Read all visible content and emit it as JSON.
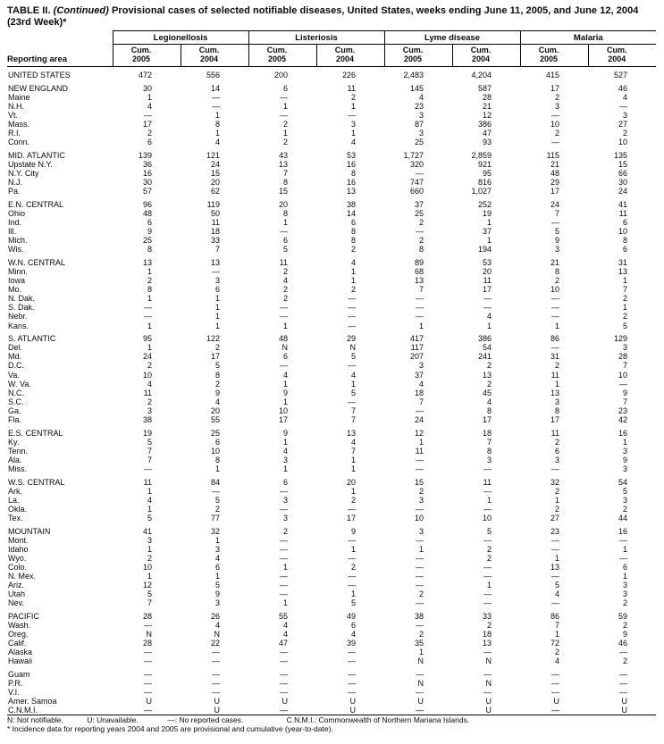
{
  "title": {
    "part_bold": "TABLE II.",
    "part_italic": "(Continued)",
    "part_rest": "Provisional cases of selected notifiable diseases, United States, weeks ending June 11, 2005, and June 12, 2004",
    "line2": "(23rd Week)*"
  },
  "header": {
    "reporting_area": "Reporting area",
    "disease_groups": [
      "Legionellosis",
      "Listeriosis",
      "Lyme disease",
      "Malaria"
    ],
    "subcols": [
      {
        "line1": "Cum.",
        "line2": "2005"
      },
      {
        "line1": "Cum.",
        "line2": "2004"
      },
      {
        "line1": "Cum.",
        "line2": "2005"
      },
      {
        "line1": "Cum.",
        "line2": "2004"
      },
      {
        "line1": "Cum.",
        "line2": "2005"
      },
      {
        "line1": "Cum.",
        "line2": "2004"
      },
      {
        "line1": "Cum.",
        "line2": "2005"
      },
      {
        "line1": "Cum.",
        "line2": "2004"
      }
    ]
  },
  "body": {
    "groups": [
      {
        "rows": [
          {
            "area": "UNITED STATES",
            "values": [
              "472",
              "556",
              "200",
              "226",
              "2,483",
              "4,204",
              "415",
              "527"
            ]
          }
        ]
      },
      {
        "rows": [
          {
            "area": "NEW ENGLAND",
            "values": [
              "30",
              "14",
              "6",
              "11",
              "145",
              "587",
              "17",
              "46"
            ]
          },
          {
            "area": "Maine",
            "values": [
              "1",
              "—",
              "—",
              "2",
              "4",
              "28",
              "2",
              "4"
            ]
          },
          {
            "area": "N.H.",
            "values": [
              "4",
              "—",
              "1",
              "1",
              "23",
              "21",
              "3",
              "—"
            ]
          },
          {
            "area": "Vt.",
            "values": [
              "—",
              "1",
              "—",
              "—",
              "3",
              "12",
              "—",
              "3"
            ]
          },
          {
            "area": "Mass.",
            "values": [
              "17",
              "8",
              "2",
              "3",
              "87",
              "386",
              "10",
              "27"
            ]
          },
          {
            "area": "R.I.",
            "values": [
              "2",
              "1",
              "1",
              "1",
              "3",
              "47",
              "2",
              "2"
            ]
          },
          {
            "area": "Conn.",
            "values": [
              "6",
              "4",
              "2",
              "4",
              "25",
              "93",
              "—",
              "10"
            ]
          }
        ]
      },
      {
        "rows": [
          {
            "area": "MID. ATLANTIC",
            "values": [
              "139",
              "121",
              "43",
              "53",
              "1,727",
              "2,859",
              "115",
              "135"
            ]
          },
          {
            "area": "Upstate N.Y.",
            "values": [
              "36",
              "24",
              "13",
              "16",
              "320",
              "921",
              "21",
              "15"
            ]
          },
          {
            "area": "N.Y. City",
            "values": [
              "16",
              "15",
              "7",
              "8",
              "—",
              "95",
              "48",
              "66"
            ]
          },
          {
            "area": "N.J.",
            "values": [
              "30",
              "20",
              "8",
              "16",
              "747",
              "816",
              "29",
              "30"
            ]
          },
          {
            "area": "Pa.",
            "values": [
              "57",
              "62",
              "15",
              "13",
              "660",
              "1,027",
              "17",
              "24"
            ]
          }
        ]
      },
      {
        "rows": [
          {
            "area": "E.N. CENTRAL",
            "values": [
              "96",
              "119",
              "20",
              "38",
              "37",
              "252",
              "24",
              "41"
            ]
          },
          {
            "area": "Ohio",
            "values": [
              "48",
              "50",
              "8",
              "14",
              "25",
              "19",
              "7",
              "11"
            ]
          },
          {
            "area": "Ind.",
            "values": [
              "6",
              "11",
              "1",
              "6",
              "2",
              "1",
              "—",
              "6"
            ]
          },
          {
            "area": "Ill.",
            "values": [
              "9",
              "18",
              "—",
              "8",
              "—",
              "37",
              "5",
              "10"
            ]
          },
          {
            "area": "Mich.",
            "values": [
              "25",
              "33",
              "6",
              "8",
              "2",
              "1",
              "9",
              "8"
            ]
          },
          {
            "area": "Wis.",
            "values": [
              "8",
              "7",
              "5",
              "2",
              "8",
              "194",
              "3",
              "6"
            ]
          }
        ]
      },
      {
        "rows": [
          {
            "area": "W.N. CENTRAL",
            "values": [
              "13",
              "13",
              "11",
              "4",
              "89",
              "53",
              "21",
              "31"
            ]
          },
          {
            "area": "Minn.",
            "values": [
              "1",
              "—",
              "2",
              "1",
              "68",
              "20",
              "8",
              "13"
            ]
          },
          {
            "area": "Iowa",
            "values": [
              "2",
              "3",
              "4",
              "1",
              "13",
              "11",
              "2",
              "1"
            ]
          },
          {
            "area": "Mo.",
            "values": [
              "8",
              "6",
              "2",
              "2",
              "7",
              "17",
              "10",
              "7"
            ]
          },
          {
            "area": "N. Dak.",
            "values": [
              "1",
              "1",
              "2",
              "—",
              "—",
              "—",
              "—",
              "2"
            ]
          },
          {
            "area": "S. Dak.",
            "values": [
              "—",
              "1",
              "—",
              "—",
              "—",
              "—",
              "—",
              "1"
            ]
          },
          {
            "area": "Nebr.",
            "values": [
              "—",
              "1",
              "—",
              "—",
              "—",
              "4",
              "—",
              "2"
            ]
          },
          {
            "area": "Kans.",
            "values": [
              "1",
              "1",
              "1",
              "—",
              "1",
              "1",
              "1",
              "5"
            ]
          }
        ]
      },
      {
        "rows": [
          {
            "area": "S. ATLANTIC",
            "values": [
              "95",
              "122",
              "48",
              "29",
              "417",
              "386",
              "86",
              "129"
            ]
          },
          {
            "area": "Del.",
            "values": [
              "1",
              "2",
              "N",
              "N",
              "117",
              "54",
              "—",
              "3"
            ]
          },
          {
            "area": "Md.",
            "values": [
              "24",
              "17",
              "6",
              "5",
              "207",
              "241",
              "31",
              "28"
            ]
          },
          {
            "area": "D.C.",
            "values": [
              "2",
              "5",
              "—",
              "—",
              "3",
              "2",
              "2",
              "7"
            ]
          },
          {
            "area": "Va.",
            "values": [
              "10",
              "8",
              "4",
              "4",
              "37",
              "13",
              "11",
              "10"
            ]
          },
          {
            "area": "W. Va.",
            "values": [
              "4",
              "2",
              "1",
              "1",
              "4",
              "2",
              "1",
              "—"
            ]
          },
          {
            "area": "N.C.",
            "values": [
              "11",
              "9",
              "9",
              "5",
              "18",
              "45",
              "13",
              "9"
            ]
          },
          {
            "area": "S.C.",
            "values": [
              "2",
              "4",
              "1",
              "—",
              "7",
              "4",
              "3",
              "7"
            ]
          },
          {
            "area": "Ga.",
            "values": [
              "3",
              "20",
              "10",
              "7",
              "—",
              "8",
              "8",
              "23"
            ]
          },
          {
            "area": "Fla.",
            "values": [
              "38",
              "55",
              "17",
              "7",
              "24",
              "17",
              "17",
              "42"
            ]
          }
        ]
      },
      {
        "rows": [
          {
            "area": "E.S. CENTRAL",
            "values": [
              "19",
              "25",
              "9",
              "13",
              "12",
              "18",
              "11",
              "16"
            ]
          },
          {
            "area": "Ky.",
            "values": [
              "5",
              "6",
              "1",
              "4",
              "1",
              "7",
              "2",
              "1"
            ]
          },
          {
            "area": "Tenn.",
            "values": [
              "7",
              "10",
              "4",
              "7",
              "11",
              "8",
              "6",
              "3"
            ]
          },
          {
            "area": "Ala.",
            "values": [
              "7",
              "8",
              "3",
              "1",
              "—",
              "3",
              "3",
              "9"
            ]
          },
          {
            "area": "Miss.",
            "values": [
              "—",
              "1",
              "1",
              "1",
              "—",
              "—",
              "—",
              "3"
            ]
          }
        ]
      },
      {
        "rows": [
          {
            "area": "W.S. CENTRAL",
            "values": [
              "11",
              "84",
              "6",
              "20",
              "15",
              "11",
              "32",
              "54"
            ]
          },
          {
            "area": "Ark.",
            "values": [
              "1",
              "—",
              "—",
              "1",
              "2",
              "—",
              "2",
              "5"
            ]
          },
          {
            "area": "La.",
            "values": [
              "4",
              "5",
              "3",
              "2",
              "3",
              "1",
              "1",
              "3"
            ]
          },
          {
            "area": "Okla.",
            "values": [
              "1",
              "2",
              "—",
              "—",
              "—",
              "—",
              "2",
              "2"
            ]
          },
          {
            "area": "Tex.",
            "values": [
              "5",
              "77",
              "3",
              "17",
              "10",
              "10",
              "27",
              "44"
            ]
          }
        ]
      },
      {
        "rows": [
          {
            "area": "MOUNTAIN",
            "values": [
              "41",
              "32",
              "2",
              "9",
              "3",
              "5",
              "23",
              "16"
            ]
          },
          {
            "area": "Mont.",
            "values": [
              "3",
              "1",
              "—",
              "—",
              "—",
              "—",
              "—",
              "—"
            ]
          },
          {
            "area": "Idaho",
            "values": [
              "1",
              "3",
              "—",
              "1",
              "1",
              "2",
              "—",
              "1"
            ]
          },
          {
            "area": "Wyo.",
            "values": [
              "2",
              "4",
              "—",
              "—",
              "—",
              "2",
              "1",
              "—"
            ]
          },
          {
            "area": "Colo.",
            "values": [
              "10",
              "6",
              "1",
              "2",
              "—",
              "—",
              "13",
              "6"
            ]
          },
          {
            "area": "N. Mex.",
            "values": [
              "1",
              "1",
              "—",
              "—",
              "—",
              "—",
              "—",
              "1"
            ]
          },
          {
            "area": "Ariz.",
            "values": [
              "12",
              "5",
              "—",
              "—",
              "—",
              "1",
              "5",
              "3"
            ]
          },
          {
            "area": "Utah",
            "values": [
              "5",
              "9",
              "—",
              "1",
              "2",
              "—",
              "4",
              "3"
            ]
          },
          {
            "area": "Nev.",
            "values": [
              "7",
              "3",
              "1",
              "5",
              "—",
              "—",
              "—",
              "2"
            ]
          }
        ]
      },
      {
        "rows": [
          {
            "area": "PACIFIC",
            "values": [
              "28",
              "26",
              "55",
              "49",
              "38",
              "33",
              "86",
              "59"
            ]
          },
          {
            "area": "Wash.",
            "values": [
              "—",
              "4",
              "4",
              "6",
              "—",
              "2",
              "7",
              "2"
            ]
          },
          {
            "area": "Oreg.",
            "values": [
              "N",
              "N",
              "4",
              "4",
              "2",
              "18",
              "1",
              "9"
            ]
          },
          {
            "area": "Calif.",
            "values": [
              "28",
              "22",
              "47",
              "39",
              "35",
              "13",
              "72",
              "46"
            ]
          },
          {
            "area": "Alaska",
            "values": [
              "—",
              "—",
              "—",
              "—",
              "1",
              "—",
              "2",
              "—"
            ]
          },
          {
            "area": "Hawaii",
            "values": [
              "—",
              "—",
              "—",
              "—",
              "N",
              "N",
              "4",
              "2"
            ]
          }
        ]
      },
      {
        "rows": [
          {
            "area": "Guam",
            "values": [
              "—",
              "—",
              "—",
              "—",
              "—",
              "—",
              "—",
              "—"
            ]
          },
          {
            "area": "P.R.",
            "values": [
              "—",
              "—",
              "—",
              "—",
              "N",
              "N",
              "—",
              "—"
            ]
          },
          {
            "area": "V.I.",
            "values": [
              "—",
              "—",
              "—",
              "—",
              "—",
              "—",
              "—",
              "—"
            ]
          },
          {
            "area": "Amer. Samoa",
            "values": [
              "U",
              "U",
              "U",
              "U",
              "U",
              "U",
              "U",
              "U"
            ]
          },
          {
            "area": "C.N.M.I.",
            "values": [
              "—",
              "U",
              "—",
              "U",
              "—",
              "U",
              "—",
              "U"
            ]
          }
        ]
      }
    ]
  },
  "footnotes": {
    "legend": [
      "N: Not notifiable.",
      "U: Unavailable.",
      "—: No reported cases.",
      "C.N.M.I.: Commonwealth of Northern Mariana Islands."
    ],
    "incidence_note": "* Incidence data for reporting years 2004 and 2005 are provisional and cumulative (year-to-date)."
  }
}
